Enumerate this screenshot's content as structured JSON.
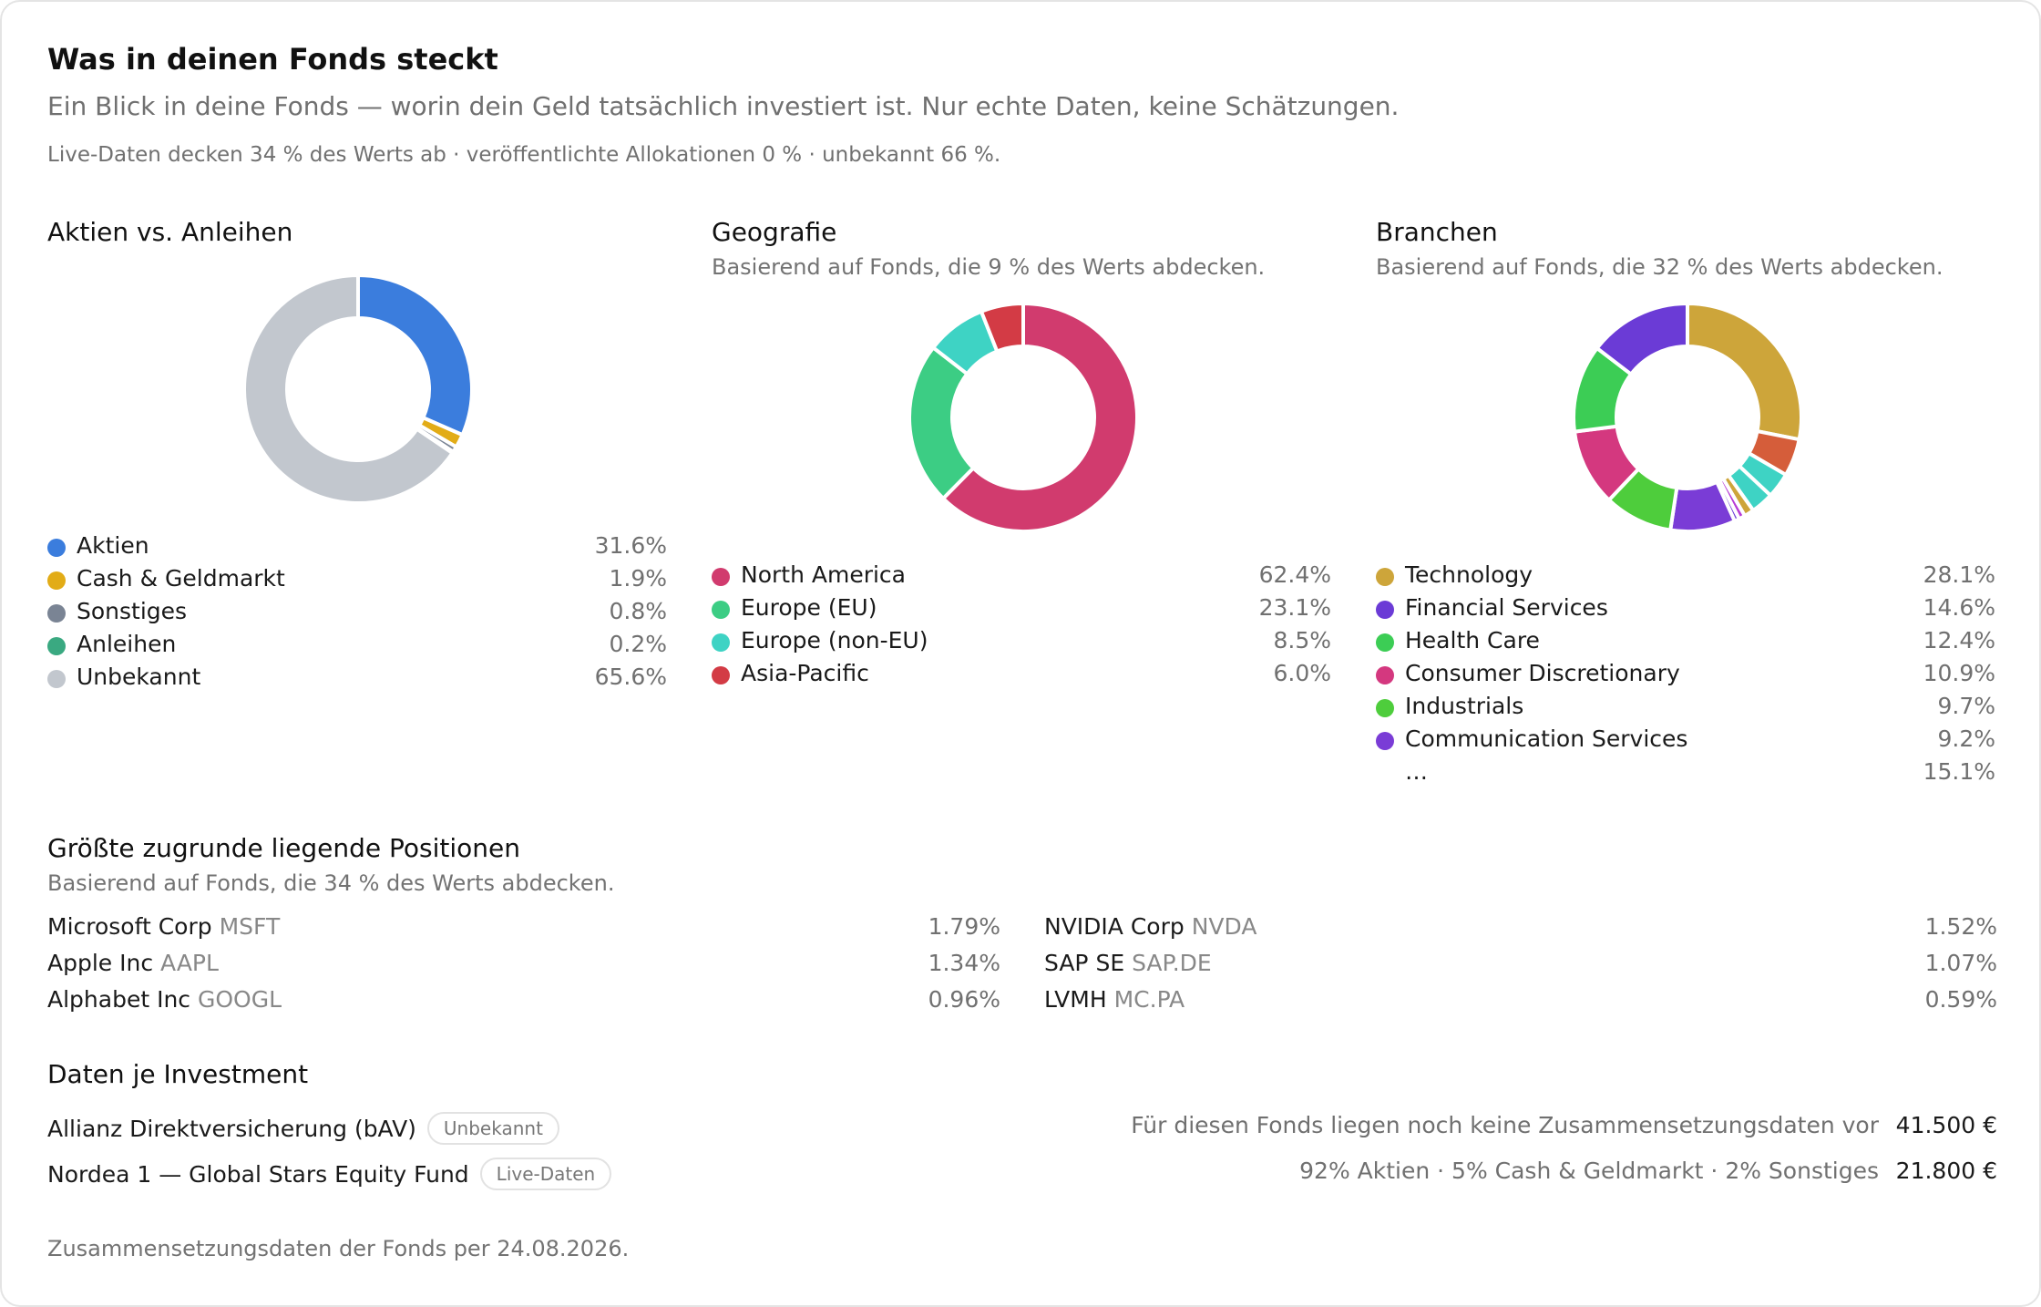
{
  "header": {
    "title": "Was in deinen Fonds steckt",
    "subtitle": "Ein Blick in deine Fonds — worin dein Geld tatsächlich investiert ist. Nur echte Daten, keine Schätzungen.",
    "coverage": "Live-Daten decken 34 % des Werts ab · veröffentlichte Allokationen 0 % · unbekannt 66 %."
  },
  "chart_data": [
    {
      "type": "pie",
      "title": "Aktien vs. Anleihen",
      "subtitle": "",
      "donut": true,
      "slices": [
        {
          "label": "Aktien",
          "value": 31.6,
          "display": "31.6%",
          "color": "#3b7ddd"
        },
        {
          "label": "Cash & Geldmarkt",
          "value": 1.9,
          "display": "1.9%",
          "color": "#e2ac17"
        },
        {
          "label": "Sonstiges",
          "value": 0.8,
          "display": "0.8%",
          "color": "#7a8494"
        },
        {
          "label": "Anleihen",
          "value": 0.2,
          "display": "0.2%",
          "color": "#3aa981"
        },
        {
          "label": "Unbekannt",
          "value": 65.6,
          "display": "65.6%",
          "color": "#c2c7ce"
        }
      ]
    },
    {
      "type": "pie",
      "title": "Geografie",
      "subtitle": "Basierend auf Fonds, die 9 % des Werts abdecken.",
      "donut": true,
      "slices": [
        {
          "label": "North America",
          "value": 62.4,
          "display": "62.4%",
          "color": "#d13b6e"
        },
        {
          "label": "Europe (EU)",
          "value": 23.1,
          "display": "23.1%",
          "color": "#3ccd84"
        },
        {
          "label": "Europe (non-EU)",
          "value": 8.5,
          "display": "8.5%",
          "color": "#3ed3c4"
        },
        {
          "label": "Asia-Pacific",
          "value": 6.0,
          "display": "6.0%",
          "color": "#d33b45"
        }
      ]
    },
    {
      "type": "pie",
      "title": "Branchen",
      "subtitle": "Basierend auf Fonds, die 32 % des Werts abdecken.",
      "donut": true,
      "slices": [
        {
          "label": "Technology",
          "value": 28.1,
          "display": "28.1%",
          "color": "#cda53a"
        },
        {
          "label": "Financial Services",
          "value": 14.6,
          "display": "14.6%",
          "color": "#6b3bd6"
        },
        {
          "label": "Health Care",
          "value": 12.4,
          "display": "12.4%",
          "color": "#3ccd55"
        },
        {
          "label": "Consumer Discretionary",
          "value": 10.9,
          "display": "10.9%",
          "color": "#d4387f"
        },
        {
          "label": "Industrials",
          "value": 9.7,
          "display": "9.7%",
          "color": "#4ecd3c"
        },
        {
          "label": "Communication Services",
          "value": 9.2,
          "display": "9.2%",
          "color": "#7a3cd6"
        },
        {
          "label": "…",
          "value": 15.1,
          "display": "15.1%",
          "color": ""
        }
      ],
      "other_slices": [
        {
          "value": 5.3,
          "color": "#d55d3a"
        },
        {
          "value": 3.6,
          "color": "#3ed3c4"
        },
        {
          "value": 3.2,
          "color": "#3ed3c4"
        },
        {
          "value": 1.4,
          "color": "#cda53a"
        },
        {
          "value": 0.9,
          "color": "#b73cd6"
        },
        {
          "value": 0.7,
          "color": "#6b3bd6"
        }
      ]
    }
  ],
  "positions": {
    "title": "Größte zugrunde liegende Positionen",
    "subtitle": "Basierend auf Fonds, die 34 % des Werts abdecken.",
    "items": [
      {
        "name": "Microsoft Corp",
        "ticker": "MSFT",
        "weight": "1.79%"
      },
      {
        "name": "NVIDIA Corp",
        "ticker": "NVDA",
        "weight": "1.52%"
      },
      {
        "name": "Apple Inc",
        "ticker": "AAPL",
        "weight": "1.34%"
      },
      {
        "name": "SAP SE",
        "ticker": "SAP.DE",
        "weight": "1.07%"
      },
      {
        "name": "Alphabet Inc",
        "ticker": "GOOGL",
        "weight": "0.96%"
      },
      {
        "name": "LVMH",
        "ticker": "MC.PA",
        "weight": "0.59%"
      }
    ]
  },
  "investments": {
    "title": "Daten je Investment",
    "items": [
      {
        "name": "Allianz Direktversicherung (bAV)",
        "badge": "Unbekannt",
        "description": "Für diesen Fonds liegen noch keine Zusammensetzungsdaten vor",
        "amount": "41.500 €"
      },
      {
        "name": "Nordea 1 — Global Stars Equity Fund",
        "badge": "Live-Daten",
        "description": "92% Aktien · 5% Cash & Geldmarkt · 2% Sonstiges",
        "amount": "21.800 €"
      }
    ]
  },
  "footer": "Zusammensetzungsdaten der Fonds per 24.08.2026."
}
